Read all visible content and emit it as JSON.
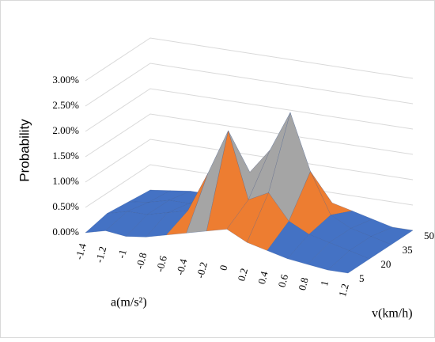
{
  "chart_data": {
    "type": "surface",
    "zlabel": "Probability",
    "xlabel": "a(m/s²)",
    "ylabel": "v(km/h)",
    "x": [
      "-1.4",
      "-1.2",
      "-1",
      "-0.8",
      "-0.6",
      "-0.4",
      "-0.2",
      "0",
      "0.2",
      "0.4",
      "0.6",
      "0.8",
      "1",
      "1.2"
    ],
    "series": [
      {
        "name": "5",
        "values": [
          0,
          0.1,
          0.05,
          0.1,
          0.2,
          0.3,
          0.4,
          0.5,
          0.3,
          0.2,
          0.1,
          0.05,
          0,
          0
        ]
      },
      {
        "name": "20",
        "values": [
          0.1,
          0.2,
          0.2,
          0.3,
          0.4,
          1.2,
          2.1,
          0.8,
          1.0,
          0.5,
          0.3,
          0.2,
          0.1,
          0
        ]
      },
      {
        "name": "35",
        "values": [
          0.05,
          0.1,
          0.2,
          0.2,
          0.3,
          0.6,
          1.0,
          1.5,
          2.3,
          1.2,
          0.4,
          0.2,
          0.1,
          0
        ]
      },
      {
        "name": "50",
        "values": [
          0,
          0.05,
          0.1,
          0.1,
          0.2,
          0.3,
          0.4,
          0.6,
          0.5,
          0.3,
          0.2,
          0.1,
          0,
          0
        ]
      }
    ],
    "zlim": [
      0,
      3
    ],
    "zticks": [
      {
        "value": 0,
        "label": "0.00%"
      },
      {
        "value": 0.5,
        "label": "0.50%"
      },
      {
        "value": 1,
        "label": "1.00%"
      },
      {
        "value": 1.5,
        "label": "1.50%"
      },
      {
        "value": 2,
        "label": "2.00%"
      },
      {
        "value": 2.5,
        "label": "2.50%"
      },
      {
        "value": 3,
        "label": "3.00%"
      }
    ],
    "band_colors": [
      "#4472c4",
      "#ed7d31",
      "#a5a5a5",
      "#ffc000",
      "#5b9bd5",
      "#70ad47"
    ],
    "grid": true
  }
}
